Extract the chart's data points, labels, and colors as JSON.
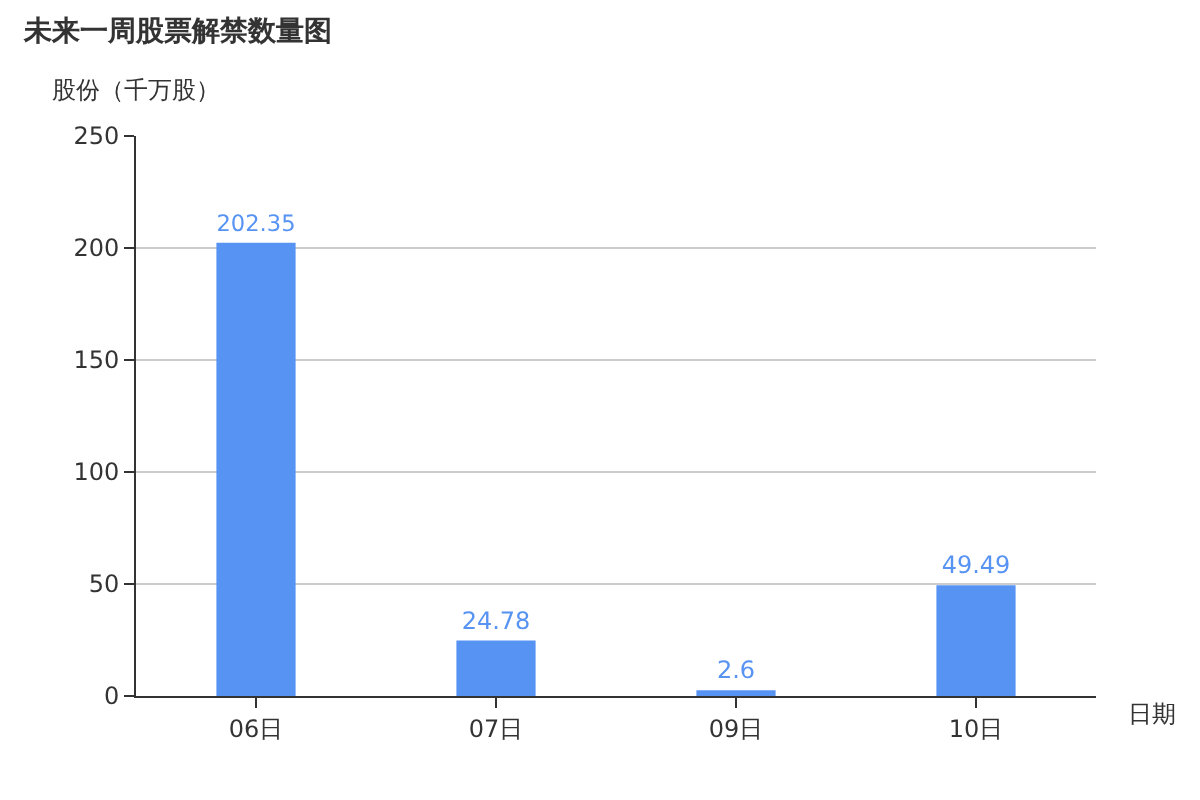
{
  "chart_data": {
    "type": "bar",
    "title": "未来一周股票解禁数量图",
    "ylabel": "股份（千万股）",
    "xlabel": "日期",
    "categories": [
      "06日",
      "07日",
      "09日",
      "10日"
    ],
    "values": [
      202.35,
      24.78,
      2.6,
      49.49
    ],
    "color": "#5793f3",
    "ylim": [
      0,
      250
    ],
    "yticks": [
      0,
      50,
      100,
      150,
      200,
      250
    ],
    "grid": "y",
    "data_labels": true
  }
}
